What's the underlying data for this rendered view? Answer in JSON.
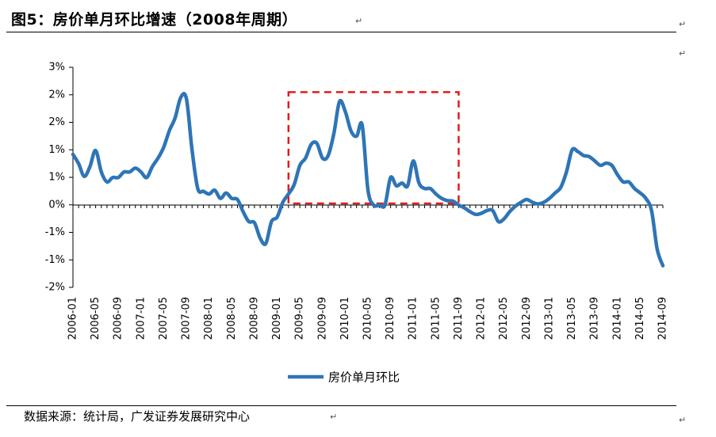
{
  "header": {
    "title": "图5：房价单月环比增速（2008年周期）",
    "para_mark": "↵"
  },
  "footer": {
    "source": "数据来源：统计局，广发证券发展研究中心"
  },
  "colors": {
    "line": "#2E75B6",
    "highlight": "#E31B1B",
    "axis": "#000000"
  },
  "chart_data": {
    "type": "line",
    "title": "",
    "ytick_labels": [
      "3%",
      "2%",
      "2%",
      "1%",
      "1%",
      "0%",
      "-1%",
      "-1%",
      "-2%"
    ],
    "ylim": [
      -1.5,
      2.5
    ],
    "xtick_labels": [
      "2006-01",
      "2006-05",
      "2006-09",
      "2007-01",
      "2007-05",
      "2007-09",
      "2008-01",
      "2008-05",
      "2008-09",
      "2009-01",
      "2009-05",
      "2009-09",
      "2010-01",
      "2010-05",
      "2010-09",
      "2011-01",
      "2011-05",
      "2011-09",
      "2012-01",
      "2012-05",
      "2012-09",
      "2013-01",
      "2013-05",
      "2013-09",
      "2014-01",
      "2014-05",
      "2014-09"
    ],
    "legend": {
      "label": "房价单月环比",
      "position": "bottom"
    },
    "highlight_box": {
      "from": "2009-03",
      "to": "2011-09",
      "ymin": 0.0,
      "ymax": 2.05
    },
    "series": [
      {
        "name": "房价单月环比",
        "x": [
          "2006-01",
          "2006-02",
          "2006-03",
          "2006-04",
          "2006-05",
          "2006-06",
          "2006-07",
          "2006-08",
          "2006-09",
          "2006-10",
          "2006-11",
          "2006-12",
          "2007-01",
          "2007-02",
          "2007-03",
          "2007-04",
          "2007-05",
          "2007-06",
          "2007-07",
          "2007-08",
          "2007-09",
          "2007-10",
          "2007-11",
          "2007-12",
          "2008-01",
          "2008-02",
          "2008-03",
          "2008-04",
          "2008-05",
          "2008-06",
          "2008-07",
          "2008-08",
          "2008-09",
          "2008-10",
          "2008-11",
          "2008-12",
          "2009-01",
          "2009-02",
          "2009-03",
          "2009-04",
          "2009-05",
          "2009-06",
          "2009-07",
          "2009-08",
          "2009-09",
          "2009-10",
          "2009-11",
          "2009-12",
          "2010-01",
          "2010-02",
          "2010-03",
          "2010-04",
          "2010-05",
          "2010-06",
          "2010-07",
          "2010-08",
          "2010-09",
          "2010-10",
          "2010-11",
          "2010-12",
          "2011-01",
          "2011-02",
          "2011-03",
          "2011-04",
          "2011-05",
          "2011-06",
          "2011-07",
          "2011-08",
          "2011-09",
          "2011-10",
          "2011-11",
          "2011-12",
          "2012-01",
          "2012-02",
          "2012-03",
          "2012-04",
          "2012-05",
          "2012-06",
          "2012-07",
          "2012-08",
          "2012-09",
          "2012-10",
          "2012-11",
          "2012-12",
          "2013-01",
          "2013-02",
          "2013-03",
          "2013-04",
          "2013-05",
          "2013-06",
          "2013-07",
          "2013-08",
          "2013-09",
          "2013-10",
          "2013-11",
          "2013-12",
          "2014-01",
          "2014-02",
          "2014-03",
          "2014-04",
          "2014-05",
          "2014-06",
          "2014-07",
          "2014-08",
          "2014-09"
        ],
        "values": [
          0.92,
          0.75,
          0.52,
          0.7,
          0.99,
          0.6,
          0.42,
          0.5,
          0.5,
          0.6,
          0.6,
          0.67,
          0.6,
          0.5,
          0.7,
          0.85,
          1.05,
          1.35,
          1.58,
          1.95,
          1.93,
          1.0,
          0.3,
          0.25,
          0.2,
          0.27,
          0.12,
          0.22,
          0.12,
          0.1,
          -0.12,
          -0.3,
          -0.32,
          -0.6,
          -0.7,
          -0.3,
          -0.22,
          0.05,
          0.2,
          0.37,
          0.72,
          0.85,
          1.1,
          1.12,
          0.85,
          0.9,
          1.3,
          1.88,
          1.7,
          1.35,
          1.25,
          1.45,
          0.28,
          0.0,
          0.0,
          0.0,
          0.5,
          0.35,
          0.4,
          0.35,
          0.8,
          0.4,
          0.3,
          0.3,
          0.2,
          0.12,
          0.08,
          0.07,
          0.0,
          -0.05,
          -0.12,
          -0.17,
          -0.15,
          -0.1,
          -0.1,
          -0.3,
          -0.25,
          -0.12,
          -0.02,
          0.05,
          0.1,
          0.05,
          0.02,
          0.05,
          0.12,
          0.22,
          0.32,
          0.6,
          1.0,
          0.97,
          0.9,
          0.88,
          0.8,
          0.72,
          0.76,
          0.72,
          0.55,
          0.42,
          0.42,
          0.3,
          0.22,
          0.12,
          -0.1,
          -0.8,
          -1.1
        ]
      }
    ]
  }
}
